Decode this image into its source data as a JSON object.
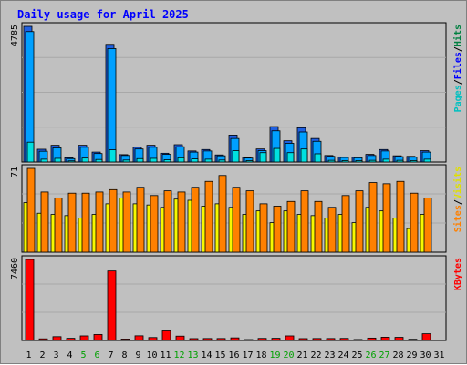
{
  "chart_data": {
    "type": "bar",
    "title": "Daily usage for April 2025",
    "days": [
      "1",
      "2",
      "3",
      "4",
      "5",
      "6",
      "7",
      "8",
      "9",
      "10",
      "11",
      "12",
      "13",
      "14",
      "15",
      "16",
      "17",
      "18",
      "19",
      "20",
      "21",
      "22",
      "23",
      "24",
      "25",
      "26",
      "27",
      "28",
      "29",
      "30",
      "31"
    ],
    "weekend_days": [
      "5",
      "6",
      "12",
      "13",
      "19",
      "20",
      "26",
      "27"
    ],
    "panels": [
      {
        "id": "hits",
        "max_label": "4785",
        "ymax": 4785,
        "legend": [
          "Pages",
          "/",
          "Files",
          "/",
          "Hits"
        ],
        "legend_colors": [
          "#00c0c0",
          "#000000",
          "#0000ff",
          "#000000",
          "#008040"
        ],
        "series": [
          {
            "name": "Hits",
            "color": "#2060e0",
            "values": [
              4785,
              450,
              590,
              150,
              590,
              350,
              4150,
              260,
              520,
              590,
              310,
              610,
              390,
              440,
              250,
              950,
              160,
              460,
              1250,
              750,
              1210,
              830,
              230,
              180,
              170,
              270,
              440,
              220,
              200,
              400,
              0
            ]
          },
          {
            "name": "Files",
            "color": "#00a0ff",
            "values": [
              4600,
              380,
              500,
              120,
              520,
              300,
              4000,
              230,
              460,
              520,
              270,
              540,
              350,
              390,
              220,
              830,
              140,
              400,
              1100,
              660,
              1060,
              730,
              200,
              160,
              150,
              230,
              390,
              190,
              170,
              350,
              0
            ]
          },
          {
            "name": "Pages",
            "color": "#00e0e0",
            "values": [
              700,
              100,
              130,
              40,
              140,
              90,
              430,
              70,
              120,
              130,
              80,
              150,
              110,
              100,
              70,
              400,
              50,
              330,
              480,
              330,
              460,
              290,
              60,
              50,
              50,
              60,
              100,
              60,
              50,
              100,
              0
            ]
          }
        ]
      },
      {
        "id": "visits",
        "max_label": "71",
        "ymax": 71,
        "legend": [
          "Sites",
          "/",
          "Visits"
        ],
        "legend_colors": [
          "#ff8000",
          "#000000",
          "#e0e000"
        ],
        "series": [
          {
            "name": "Visits",
            "color": "#f8f800",
            "values": [
              42,
              33,
              32,
              31,
              29,
              32,
              41,
              46,
              41,
              40,
              38,
              45,
              44,
              39,
              41,
              38,
              32,
              35,
              25,
              35,
              32,
              31,
              29,
              32,
              25,
              38,
              35,
              29,
              20,
              32,
              0
            ]
          },
          {
            "name": "Sites",
            "color": "#ff8000",
            "values": [
              71,
              51,
              46,
              50,
              50,
              51,
              53,
              51,
              55,
              48,
              52,
              51,
              55,
              60,
              65,
              55,
              52,
              41,
              39,
              43,
              52,
              43,
              38,
              48,
              52,
              59,
              58,
              60,
              50,
              46,
              0
            ]
          }
        ]
      },
      {
        "id": "kbytes",
        "max_label": "7460",
        "ymax": 7460,
        "legend": [
          "KBytes"
        ],
        "legend_colors": [
          "#ff0000"
        ],
        "series": [
          {
            "name": "KBytes",
            "color": "#ff0000",
            "values": [
              7460,
              150,
              350,
              200,
              420,
              550,
              6400,
              130,
              430,
              270,
              880,
              400,
              170,
              180,
              180,
              240,
              80,
              190,
              200,
              420,
              170,
              180,
              180,
              190,
              90,
              220,
              300,
              290,
              110,
              620,
              0
            ]
          }
        ]
      }
    ]
  }
}
